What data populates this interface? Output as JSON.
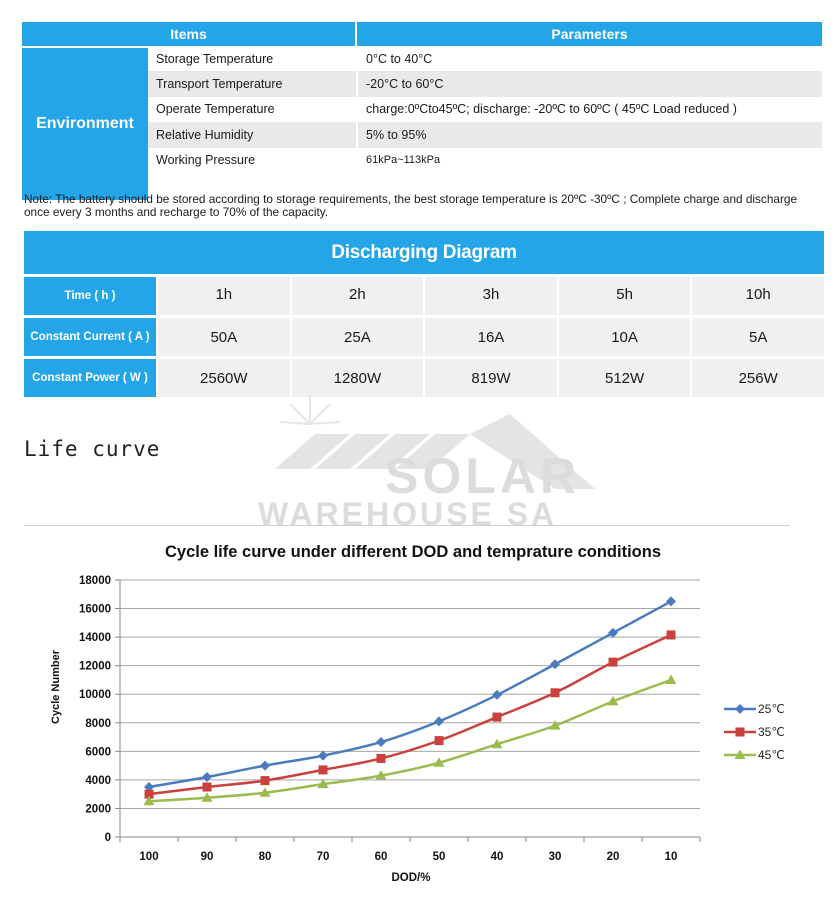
{
  "env_table": {
    "header_items": "Items",
    "header_params": "Parameters",
    "group_label": "Environment",
    "rows": [
      {
        "key": "Storage Temperature",
        "value": "0°C to 40°C"
      },
      {
        "key": "Transport Temperature",
        "value": "-20°C to 60°C"
      },
      {
        "key": "Operate Temperature",
        "value": "charge:0ºCto45ºC;  discharge: -20ºC to 60ºC ( 45ºC Load reduced )"
      },
      {
        "key": "Relative Humidity",
        "value": "5% to 95%"
      },
      {
        "key": "Working Pressure",
        "value": "61kPa~113kPa"
      }
    ]
  },
  "note": "Note: The battery should be stored according to storage requirements, the best storage temperature is 20ºC -30ºC ; Complete charge and discharge once every 3 months and recharge to 70% of the capacity.",
  "discharge": {
    "title": "Discharging Diagram",
    "rows": [
      {
        "label": "Time ( h )",
        "cells": [
          "1h",
          "2h",
          "3h",
          "5h",
          "10h"
        ]
      },
      {
        "label": "Constant Current ( A )",
        "cells": [
          "50A",
          "25A",
          "16A",
          "10A",
          "5A"
        ]
      },
      {
        "label": "Constant Power ( W )",
        "cells": [
          "2560W",
          "1280W",
          "819W",
          "512W",
          "256W"
        ]
      }
    ]
  },
  "life_title": "Life curve",
  "watermark": {
    "line1": "SOLAR",
    "line2": "WAREHOUSE SA"
  },
  "colors": {
    "accent": "#23a5e8",
    "s25": "#4a7bbf",
    "s35": "#c9403c",
    "s45": "#9bbb4f"
  },
  "chart_data": {
    "type": "line",
    "title": "Cycle life curve under different DOD and temprature conditions",
    "xlabel": "DOD/%",
    "ylabel": "Cycle Number",
    "categories": [
      "100",
      "90",
      "80",
      "70",
      "60",
      "50",
      "40",
      "30",
      "20",
      "10"
    ],
    "ylim": [
      0,
      18000
    ],
    "yticks": [
      "0",
      "2000",
      "4000",
      "6000",
      "8000",
      "10000",
      "12000",
      "14000",
      "16000",
      "18000"
    ],
    "legend_position": "right",
    "grid": true,
    "series": [
      {
        "name": "25℃",
        "marker": "diamond",
        "values": [
          3500,
          4200,
          5000,
          5700,
          6650,
          8100,
          9950,
          12100,
          14300,
          16500
        ]
      },
      {
        "name": "35℃",
        "marker": "square",
        "values": [
          3000,
          3500,
          3950,
          4700,
          5500,
          6750,
          8400,
          10100,
          12250,
          14150
        ]
      },
      {
        "name": "45℃",
        "marker": "triangle",
        "values": [
          2500,
          2750,
          3100,
          3700,
          4300,
          5200,
          6500,
          7800,
          9500,
          11000
        ]
      }
    ]
  }
}
